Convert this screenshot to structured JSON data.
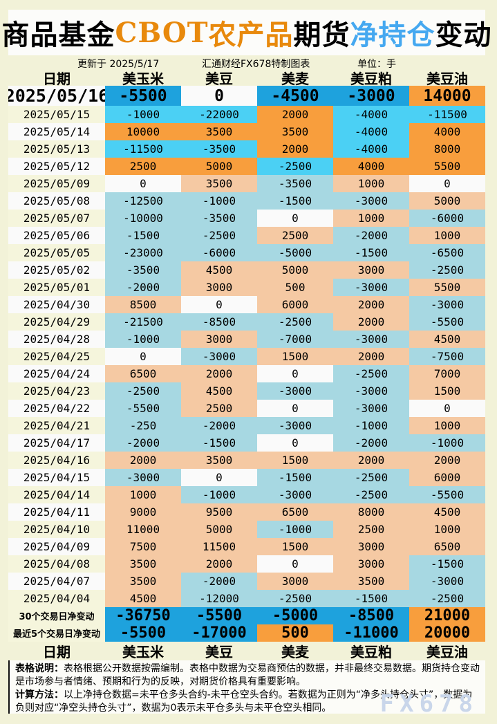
{
  "title": {
    "segments": [
      {
        "text": "商品基金",
        "color": "#000000"
      },
      {
        "text": "CBOT",
        "color": "#E8890C"
      },
      {
        "text": "农产品",
        "color": "#E8890C"
      },
      {
        "text": "期货",
        "color": "#000000"
      },
      {
        "text": "净持仓",
        "color": "#45A8F0"
      },
      {
        "text": "变动",
        "color": "#000000"
      }
    ]
  },
  "meta": {
    "updated": "更新于 2025/5/17",
    "source": "汇通财经FX678特制图表",
    "unit": "单位：手"
  },
  "chart_data": {
    "type": "table",
    "columns": [
      "日期",
      "美玉米",
      "美豆",
      "美麦",
      "美豆粕",
      "美豆油"
    ],
    "rows": [
      {
        "date": "2025/05/16",
        "values": [
          -5500,
          0,
          -4500,
          -3000,
          14000
        ]
      },
      {
        "date": "2025/05/15",
        "values": [
          -1000,
          -22000,
          2000,
          -4000,
          -11500
        ]
      },
      {
        "date": "2025/05/14",
        "values": [
          10000,
          3500,
          3500,
          -4000,
          4000
        ]
      },
      {
        "date": "2025/05/13",
        "values": [
          -11500,
          -3500,
          2000,
          -4000,
          8000
        ]
      },
      {
        "date": "2025/05/12",
        "values": [
          2500,
          5000,
          -2500,
          4000,
          5500
        ]
      },
      {
        "date": "2025/05/09",
        "values": [
          0,
          3500,
          -3500,
          1000,
          0
        ]
      },
      {
        "date": "2025/05/08",
        "values": [
          -12500,
          -1000,
          -1500,
          -3000,
          5000
        ]
      },
      {
        "date": "2025/05/07",
        "values": [
          -10000,
          -3500,
          0,
          1000,
          -6000
        ]
      },
      {
        "date": "2025/05/06",
        "values": [
          -1500,
          -2500,
          2500,
          -2000,
          1000
        ]
      },
      {
        "date": "2025/05/05",
        "values": [
          -23000,
          -6000,
          -5000,
          -1500,
          -6500
        ]
      },
      {
        "date": "2025/05/02",
        "values": [
          -3500,
          4500,
          5000,
          3000,
          -2500
        ]
      },
      {
        "date": "2025/05/01",
        "values": [
          -2000,
          3000,
          500,
          -3000,
          5500
        ]
      },
      {
        "date": "2025/04/30",
        "values": [
          8500,
          0,
          6000,
          2000,
          -3000
        ]
      },
      {
        "date": "2025/04/29",
        "values": [
          -21500,
          -8500,
          -2500,
          2000,
          -5500
        ]
      },
      {
        "date": "2025/04/28",
        "values": [
          -1000,
          3000,
          -7000,
          -3000,
          4500
        ]
      },
      {
        "date": "2025/04/25",
        "values": [
          0,
          -3000,
          1500,
          2000,
          -7500
        ]
      },
      {
        "date": "2025/04/24",
        "values": [
          6500,
          2000,
          0,
          -2500,
          7000
        ]
      },
      {
        "date": "2025/04/23",
        "values": [
          -2500,
          4500,
          -3000,
          -3000,
          1500
        ]
      },
      {
        "date": "2025/04/22",
        "values": [
          -5500,
          2500,
          0,
          -3000,
          0
        ]
      },
      {
        "date": "2025/04/21",
        "values": [
          -250,
          -2000,
          -3000,
          -1000,
          1000
        ]
      },
      {
        "date": "2025/04/17",
        "values": [
          -2000,
          -1500,
          0,
          -2000,
          -1000
        ]
      },
      {
        "date": "2025/04/16",
        "values": [
          2000,
          3500,
          1500,
          2000,
          2000
        ]
      },
      {
        "date": "2025/04/15",
        "values": [
          -3000,
          0,
          -1500,
          -2500,
          6000
        ]
      },
      {
        "date": "2025/04/14",
        "values": [
          1000,
          -1000,
          -3000,
          -2500,
          -5500
        ]
      },
      {
        "date": "2025/04/11",
        "values": [
          9000,
          9500,
          6500,
          8000,
          4500
        ]
      },
      {
        "date": "2025/04/10",
        "values": [
          11000,
          5000,
          -1000,
          2500,
          1000
        ]
      },
      {
        "date": "2025/04/09",
        "values": [
          7500,
          11500,
          1500,
          3000,
          6500
        ]
      },
      {
        "date": "2025/04/08",
        "values": [
          3500,
          2000,
          0,
          3000,
          -1500
        ]
      },
      {
        "date": "2025/04/07",
        "values": [
          3500,
          -2000,
          3000,
          3500,
          -3000
        ]
      },
      {
        "date": "2025/04/04",
        "values": [
          4500,
          -12000,
          -2500,
          -1500,
          -2500
        ]
      }
    ],
    "summary": [
      {
        "label": "30个交易日净变动",
        "values": [
          -36750,
          -5500,
          -5000,
          -8500,
          21000
        ]
      },
      {
        "label": "最近5个交易日净变动",
        "values": [
          -5500,
          -17000,
          500,
          -11000,
          20000
        ]
      }
    ],
    "title": "商品基金CBOT农产品期货净持仓变动",
    "unit": "手"
  },
  "notes": {
    "line1_label": "表格说明：",
    "line1": "表格根据公开数据按需编制。表格中数据为交易商预估的数据，并非最终交易数据。期货持仓变动是市场参与者情绪、预期和行为的反映，对期货价格具有重要影响。",
    "line2_label": "计算方法：",
    "line2": "以上净持仓数据=未平仓多头合约-未平仓空头合约。若数据为正则为“净多头持仓头寸”，数据为负则对应“净空头持仓头寸”，数据为0表示未平仓多头与未平仓空头相同。",
    "watermark": "FX678"
  },
  "colors": {
    "page-bg": "#F2F2D8",
    "row-white": "#FAFAFA",
    "row-cream": "#F5F5DC",
    "blue-bright": "#1EA2DD",
    "blue-mid": "#4BD0F4",
    "blue-pale": "#A7D8E2",
    "orange-bright": "#F89E3D",
    "orange-pale": "#F5C9A3",
    "watermark": "#C9D6EA"
  }
}
